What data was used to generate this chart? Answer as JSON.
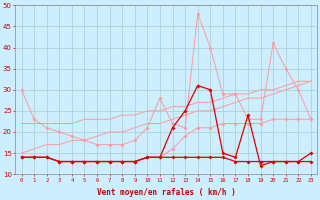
{
  "x": [
    0,
    1,
    2,
    3,
    4,
    5,
    6,
    7,
    8,
    9,
    10,
    11,
    12,
    13,
    14,
    15,
    16,
    17,
    18,
    19,
    20,
    21,
    22,
    23
  ],
  "line_rafales_light": [
    30,
    23,
    21,
    20,
    19,
    18,
    17,
    17,
    17,
    18,
    21,
    28,
    22,
    21,
    48,
    40,
    29,
    29,
    23,
    23,
    41,
    35,
    30,
    23
  ],
  "line_trend_upper": [
    15,
    16,
    17,
    17,
    18,
    18,
    19,
    20,
    20,
    21,
    22,
    22,
    23,
    24,
    25,
    25,
    26,
    27,
    28,
    28,
    29,
    30,
    31,
    32
  ],
  "line_trend_lower": [
    22,
    22,
    22,
    22,
    22,
    23,
    23,
    23,
    24,
    24,
    25,
    25,
    26,
    26,
    27,
    27,
    28,
    29,
    29,
    30,
    30,
    31,
    32,
    32
  ],
  "line_vent_light": [
    14,
    14,
    14,
    13,
    13,
    13,
    13,
    13,
    13,
    13,
    14,
    14,
    16,
    19,
    21,
    21,
    22,
    22,
    22,
    22,
    23,
    23,
    23,
    23
  ],
  "line_vent_dark": [
    14,
    14,
    14,
    13,
    13,
    13,
    13,
    13,
    13,
    13,
    14,
    14,
    14,
    14,
    14,
    14,
    14,
    13,
    13,
    13,
    13,
    13,
    13,
    15
  ],
  "line_rafales_dark": [
    14,
    14,
    14,
    13,
    13,
    13,
    13,
    13,
    13,
    13,
    14,
    14,
    21,
    25,
    31,
    30,
    15,
    14,
    24,
    12,
    13,
    13,
    13,
    13
  ],
  "bg_color": "#cceeff",
  "grid_color": "#aacccc",
  "line_color_dark": "#dd0000",
  "line_color_mid": "#ee4444",
  "line_color_light": "#ff9999",
  "xlabel": "Vent moyen/en rafales ( km/h )",
  "xlabel_color": "#cc0000",
  "tick_color": "#cc0000",
  "ylim": [
    10,
    50
  ],
  "xlim": [
    -0.5,
    23.5
  ]
}
